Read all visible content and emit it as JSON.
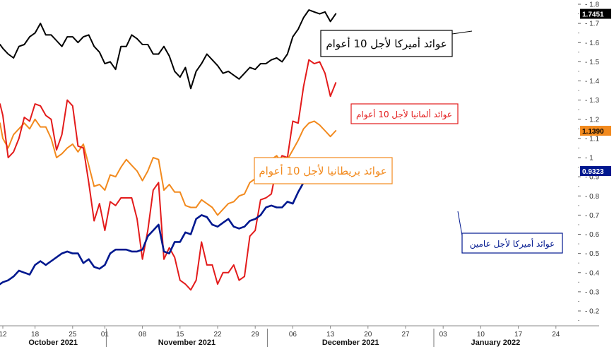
{
  "chart_data": {
    "type": "line",
    "ylim": [
      0.15,
      1.8
    ],
    "x_days": [
      0,
      52
    ],
    "y_ticks": [
      "1.8",
      "1.7",
      "1.6",
      "1.5",
      "1.4",
      "1.3",
      "1.2",
      "1.1",
      "1",
      "0.9",
      "0.8",
      "0.7",
      "0.6",
      "0.5",
      "0.4",
      "0.3",
      "0.2"
    ],
    "x_ticks": [
      {
        "day": 0,
        "label": "12"
      },
      {
        "day": 6,
        "label": "18"
      },
      {
        "day": 13,
        "label": "25"
      },
      {
        "day": 19,
        "label": "01"
      },
      {
        "day": 26,
        "label": "08"
      },
      {
        "day": 33,
        "label": "15"
      },
      {
        "day": 40,
        "label": "22"
      },
      {
        "day": 47,
        "label": "29"
      },
      {
        "day": 54,
        "label": "06"
      },
      {
        "day": 61,
        "label": "13"
      },
      {
        "day": 68,
        "label": "20"
      },
      {
        "day": 75,
        "label": "27"
      },
      {
        "day": 82,
        "label": "03"
      },
      {
        "day": 89,
        "label": "10"
      },
      {
        "day": 96,
        "label": "17"
      },
      {
        "day": 103,
        "label": "24"
      }
    ],
    "months": [
      {
        "label": "October 2021",
        "start": 0,
        "end": 19
      },
      {
        "label": "November 2021",
        "start": 19,
        "end": 49
      },
      {
        "label": "December 2021",
        "start": 49,
        "end": 80
      },
      {
        "label": "January 2022",
        "start": 80,
        "end": 103
      }
    ],
    "series": [
      {
        "name": "US10",
        "label": "عوائد أميركا لأجل 10 أعوام",
        "color": "#000000",
        "last_value": "1.7451",
        "points": [
          [
            -2,
            1.59
          ],
          [
            0,
            1.57
          ],
          [
            1,
            1.54
          ],
          [
            2,
            1.52
          ],
          [
            3,
            1.58
          ],
          [
            4,
            1.59
          ],
          [
            5,
            1.63
          ],
          [
            6,
            1.65
          ],
          [
            7,
            1.7
          ],
          [
            8,
            1.64
          ],
          [
            9,
            1.64
          ],
          [
            10,
            1.61
          ],
          [
            11,
            1.58
          ],
          [
            12,
            1.63
          ],
          [
            13,
            1.63
          ],
          [
            14,
            1.6
          ],
          [
            15,
            1.63
          ],
          [
            16,
            1.64
          ],
          [
            17,
            1.58
          ],
          [
            18,
            1.55
          ],
          [
            19,
            1.49
          ],
          [
            20,
            1.5
          ],
          [
            21,
            1.46
          ],
          [
            22,
            1.58
          ],
          [
            23,
            1.58
          ],
          [
            24,
            1.64
          ],
          [
            25,
            1.62
          ],
          [
            26,
            1.59
          ],
          [
            27,
            1.59
          ],
          [
            28,
            1.54
          ],
          [
            29,
            1.54
          ],
          [
            30,
            1.58
          ],
          [
            31,
            1.53
          ],
          [
            32,
            1.45
          ],
          [
            33,
            1.42
          ],
          [
            34,
            1.47
          ],
          [
            35,
            1.36
          ],
          [
            36,
            1.45
          ],
          [
            37,
            1.49
          ],
          [
            38,
            1.54
          ],
          [
            39,
            1.51
          ],
          [
            40,
            1.48
          ],
          [
            41,
            1.44
          ],
          [
            42,
            1.45
          ],
          [
            43,
            1.43
          ],
          [
            44,
            1.41
          ],
          [
            45,
            1.44
          ],
          [
            46,
            1.47
          ],
          [
            47,
            1.46
          ],
          [
            48,
            1.49
          ],
          [
            49,
            1.49
          ],
          [
            50,
            1.51
          ],
          [
            51,
            1.52
          ],
          [
            52,
            1.5
          ],
          [
            53,
            1.54
          ],
          [
            54,
            1.63
          ],
          [
            55,
            1.67
          ],
          [
            56,
            1.73
          ],
          [
            57,
            1.77
          ],
          [
            58,
            1.76
          ],
          [
            59,
            1.75
          ],
          [
            60,
            1.76
          ],
          [
            61,
            1.71
          ],
          [
            62,
            1.75
          ]
        ]
      },
      {
        "name": "DE10",
        "label": "عوائد ألمانيا لأجل 10 أعوام",
        "color": "#e31b1b",
        "points": [
          [
            -2,
            1.28
          ],
          [
            0,
            1.22
          ],
          [
            1,
            1.0
          ],
          [
            2,
            1.03
          ],
          [
            3,
            1.1
          ],
          [
            4,
            1.21
          ],
          [
            5,
            1.19
          ],
          [
            6,
            1.28
          ],
          [
            7,
            1.27
          ],
          [
            8,
            1.22
          ],
          [
            9,
            1.2
          ],
          [
            10,
            1.04
          ],
          [
            11,
            1.12
          ],
          [
            12,
            1.3
          ],
          [
            13,
            1.27
          ],
          [
            14,
            1.06
          ],
          [
            15,
            1.05
          ],
          [
            16,
            0.87
          ],
          [
            17,
            0.67
          ],
          [
            18,
            0.76
          ],
          [
            19,
            0.62
          ],
          [
            20,
            0.77
          ],
          [
            21,
            0.75
          ],
          [
            22,
            0.79
          ],
          [
            23,
            0.79
          ],
          [
            24,
            0.79
          ],
          [
            25,
            0.68
          ],
          [
            26,
            0.47
          ],
          [
            27,
            0.62
          ],
          [
            28,
            0.83
          ],
          [
            29,
            0.87
          ],
          [
            30,
            0.47
          ],
          [
            31,
            0.53
          ],
          [
            32,
            0.48
          ],
          [
            33,
            0.36
          ],
          [
            34,
            0.34
          ],
          [
            35,
            0.31
          ],
          [
            36,
            0.36
          ],
          [
            37,
            0.56
          ],
          [
            38,
            0.44
          ],
          [
            39,
            0.44
          ],
          [
            40,
            0.34
          ],
          [
            41,
            0.4
          ],
          [
            42,
            0.4
          ],
          [
            43,
            0.44
          ],
          [
            44,
            0.36
          ],
          [
            45,
            0.38
          ],
          [
            46,
            0.59
          ],
          [
            47,
            0.62
          ],
          [
            48,
            0.78
          ],
          [
            49,
            0.79
          ],
          [
            50,
            0.81
          ],
          [
            51,
            0.95
          ],
          [
            52,
            1.01
          ],
          [
            53,
            1.0
          ],
          [
            54,
            1.19
          ],
          [
            55,
            1.18
          ],
          [
            56,
            1.37
          ],
          [
            57,
            1.51
          ],
          [
            58,
            1.49
          ],
          [
            59,
            1.5
          ],
          [
            60,
            1.44
          ],
          [
            61,
            1.32
          ],
          [
            62,
            1.39
          ]
        ]
      },
      {
        "name": "UK10",
        "label": "عوائد بريطانيا لأجل 10 أعوام",
        "color": "#f28a1e",
        "last_value": "1.1390",
        "points": [
          [
            -2,
            1.18
          ],
          [
            0,
            1.1
          ],
          [
            1,
            1.05
          ],
          [
            2,
            1.12
          ],
          [
            3,
            1.15
          ],
          [
            4,
            1.18
          ],
          [
            5,
            1.15
          ],
          [
            6,
            1.2
          ],
          [
            7,
            1.16
          ],
          [
            8,
            1.16
          ],
          [
            9,
            1.1
          ],
          [
            10,
            1.0
          ],
          [
            11,
            1.02
          ],
          [
            12,
            1.05
          ],
          [
            13,
            1.07
          ],
          [
            14,
            1.03
          ],
          [
            15,
            1.07
          ],
          [
            16,
            0.96
          ],
          [
            17,
            0.85
          ],
          [
            18,
            0.86
          ],
          [
            19,
            0.83
          ],
          [
            20,
            0.91
          ],
          [
            21,
            0.9
          ],
          [
            22,
            0.95
          ],
          [
            23,
            0.99
          ],
          [
            24,
            0.96
          ],
          [
            25,
            0.93
          ],
          [
            26,
            0.88
          ],
          [
            27,
            0.93
          ],
          [
            28,
            1.0
          ],
          [
            29,
            0.99
          ],
          [
            30,
            0.83
          ],
          [
            31,
            0.86
          ],
          [
            32,
            0.82
          ],
          [
            33,
            0.82
          ],
          [
            34,
            0.75
          ],
          [
            35,
            0.74
          ],
          [
            36,
            0.74
          ],
          [
            37,
            0.78
          ],
          [
            38,
            0.76
          ],
          [
            39,
            0.74
          ],
          [
            40,
            0.7
          ],
          [
            41,
            0.73
          ],
          [
            42,
            0.76
          ],
          [
            43,
            0.77
          ],
          [
            44,
            0.8
          ],
          [
            45,
            0.81
          ],
          [
            46,
            0.87
          ],
          [
            47,
            0.89
          ],
          [
            48,
            0.93
          ],
          [
            49,
            0.96
          ],
          [
            50,
            0.99
          ],
          [
            51,
            1.01
          ],
          [
            52,
            0.97
          ],
          [
            53,
            0.99
          ],
          [
            54,
            1.04
          ],
          [
            55,
            1.09
          ],
          [
            56,
            1.15
          ],
          [
            57,
            1.18
          ],
          [
            58,
            1.19
          ],
          [
            59,
            1.17
          ],
          [
            60,
            1.14
          ],
          [
            61,
            1.11
          ],
          [
            62,
            1.14
          ]
        ]
      },
      {
        "name": "US2",
        "label": "عوائد أميركا لأجل عامين",
        "color": "#00188f",
        "last_value": "0.9323",
        "points": [
          [
            -2,
            0.34
          ],
          [
            0,
            0.35
          ],
          [
            1,
            0.36
          ],
          [
            2,
            0.38
          ],
          [
            3,
            0.41
          ],
          [
            4,
            0.4
          ],
          [
            5,
            0.39
          ],
          [
            6,
            0.44
          ],
          [
            7,
            0.46
          ],
          [
            8,
            0.44
          ],
          [
            9,
            0.46
          ],
          [
            10,
            0.48
          ],
          [
            11,
            0.5
          ],
          [
            12,
            0.51
          ],
          [
            13,
            0.5
          ],
          [
            14,
            0.5
          ],
          [
            15,
            0.45
          ],
          [
            16,
            0.47
          ],
          [
            17,
            0.43
          ],
          [
            18,
            0.42
          ],
          [
            19,
            0.44
          ],
          [
            20,
            0.5
          ],
          [
            21,
            0.52
          ],
          [
            22,
            0.52
          ],
          [
            23,
            0.52
          ],
          [
            24,
            0.51
          ],
          [
            25,
            0.51
          ],
          [
            26,
            0.52
          ],
          [
            27,
            0.59
          ],
          [
            28,
            0.62
          ],
          [
            29,
            0.65
          ],
          [
            30,
            0.51
          ],
          [
            31,
            0.5
          ],
          [
            32,
            0.56
          ],
          [
            33,
            0.56
          ],
          [
            34,
            0.61
          ],
          [
            35,
            0.6
          ],
          [
            36,
            0.68
          ],
          [
            37,
            0.7
          ],
          [
            38,
            0.69
          ],
          [
            39,
            0.65
          ],
          [
            40,
            0.64
          ],
          [
            41,
            0.66
          ],
          [
            42,
            0.68
          ],
          [
            43,
            0.64
          ],
          [
            44,
            0.63
          ],
          [
            45,
            0.64
          ],
          [
            46,
            0.67
          ],
          [
            47,
            0.68
          ],
          [
            48,
            0.7
          ],
          [
            49,
            0.74
          ],
          [
            50,
            0.75
          ],
          [
            51,
            0.74
          ],
          [
            52,
            0.74
          ],
          [
            53,
            0.77
          ],
          [
            54,
            0.76
          ],
          [
            55,
            0.82
          ],
          [
            56,
            0.87
          ],
          [
            57,
            0.88
          ],
          [
            58,
            0.89
          ],
          [
            59,
            0.9
          ],
          [
            60,
            0.92
          ],
          [
            61,
            0.89
          ],
          [
            62,
            0.93
          ]
        ]
      }
    ]
  }
}
